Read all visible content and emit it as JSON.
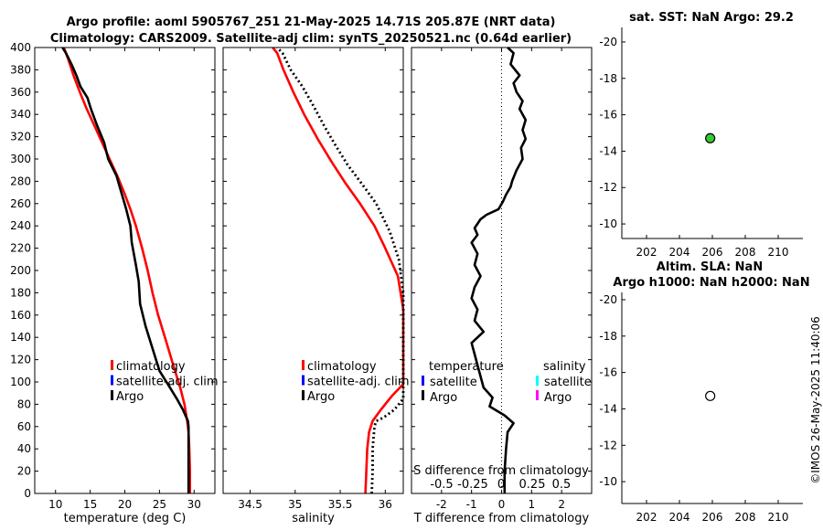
{
  "header": {
    "title_line1": "Argo profile: aoml 5905767_251 21-May-2025 14.71S 205.87E (NRT data)",
    "title_line2": "Climatology: CARS2009. Satellite-adj clim: synTS_20250521.nc (0.64d earlier)"
  },
  "stamp": "©IMOS 26-May-2025 11:40:06",
  "colors": {
    "climatology": "#ff0000",
    "satellite": "#0000ff",
    "argo": "#000000",
    "sal_satellite": "#00ffff",
    "sal_argo": "#ff00ff",
    "marker_fill": "#33cc33"
  },
  "chart_data": [
    {
      "id": "temperature",
      "type": "line",
      "xlabel": "temperature (deg C)",
      "ylabel": "",
      "xlim": [
        7,
        33
      ],
      "ylim": [
        400,
        0
      ],
      "xticks": [
        10,
        15,
        20,
        25,
        30
      ],
      "yticks": [
        0,
        20,
        40,
        60,
        80,
        100,
        120,
        140,
        160,
        180,
        200,
        220,
        240,
        260,
        280,
        300,
        320,
        340,
        360,
        380,
        400
      ],
      "legend": [
        "climatology",
        "satellite-adj. clim",
        "Argo"
      ],
      "series": [
        {
          "name": "climatology",
          "color": "#ff0000",
          "x": [
            29.4,
            29.4,
            29.3,
            29.2,
            29.0,
            28.6,
            28.0,
            27.0,
            25.8,
            24.8,
            24.0,
            23.3,
            22.5,
            21.6,
            20.8,
            19.9,
            18.9,
            17.8,
            16.7,
            15.6,
            14.5,
            13.5,
            12.6,
            11.8,
            11.2
          ],
          "y": [
            0,
            20,
            40,
            55,
            65,
            80,
            95,
            115,
            140,
            160,
            180,
            200,
            220,
            240,
            255,
            270,
            285,
            300,
            315,
            330,
            345,
            360,
            375,
            390,
            400
          ]
        },
        {
          "name": "Argo",
          "color": "#000000",
          "x": [
            29.2,
            29.2,
            29.2,
            29.2,
            29.1,
            28.4,
            27.5,
            26.5,
            25.0,
            24.0,
            23.0,
            22.2,
            22.0,
            21.6,
            21.0,
            20.8,
            20.2,
            19.5,
            18.8,
            17.6,
            17.0,
            16.0,
            15.1,
            14.6,
            13.6,
            13.0,
            12.3,
            11.5,
            11.0
          ],
          "y": [
            0,
            20,
            40,
            60,
            65,
            75,
            85,
            95,
            110,
            130,
            150,
            170,
            190,
            205,
            225,
            240,
            255,
            270,
            285,
            300,
            315,
            330,
            345,
            355,
            365,
            375,
            385,
            395,
            400
          ]
        }
      ]
    },
    {
      "id": "salinity",
      "type": "line",
      "xlabel": "salinity",
      "ylabel": "",
      "xlim": [
        34.2,
        36.2
      ],
      "ylim": [
        400,
        0
      ],
      "xticks": [
        34.5,
        35,
        35.5,
        36
      ],
      "legend": [
        "climatology",
        "satellite-adj. clim",
        "Argo"
      ],
      "series": [
        {
          "name": "climatology",
          "color": "#ff0000",
          "x": [
            35.78,
            35.79,
            35.8,
            35.82,
            35.86,
            35.95,
            36.08,
            36.2,
            36.2,
            36.2,
            36.14,
            36.0,
            35.88,
            35.72,
            35.56,
            35.4,
            35.25,
            35.1,
            34.98,
            34.87,
            34.8,
            34.75
          ],
          "y": [
            0,
            20,
            40,
            55,
            65,
            75,
            88,
            98,
            105,
            165,
            195,
            220,
            240,
            260,
            278,
            298,
            318,
            340,
            360,
            380,
            395,
            400
          ]
        },
        {
          "name": "Argo",
          "color": "#000000",
          "dash": true,
          "x": [
            35.85,
            35.86,
            35.86,
            35.88,
            35.9,
            35.98,
            36.1,
            36.2,
            36.2,
            36.2,
            36.15,
            36.05,
            35.9,
            35.72,
            35.58,
            35.45,
            35.32,
            35.2,
            35.08,
            34.95,
            34.86,
            34.8
          ],
          "y": [
            0,
            20,
            40,
            60,
            65,
            68,
            75,
            85,
            90,
            180,
            210,
            235,
            260,
            280,
            295,
            312,
            330,
            348,
            365,
            380,
            395,
            400
          ]
        }
      ]
    },
    {
      "id": "difference",
      "type": "line",
      "xlabel": "T difference from climatology",
      "xlabel2": "S difference from climatology",
      "xlim": [
        -3,
        3
      ],
      "ylim": [
        400,
        0
      ],
      "xticks": [
        -2,
        -1,
        0,
        1,
        2
      ],
      "xticks2_labels": [
        "-0.5",
        "-0.25",
        "0",
        "0.25",
        "0.5"
      ],
      "legend_left": [
        "temperature",
        "satellite",
        "Argo"
      ],
      "legend_right": [
        "salinity",
        "satellite",
        "Argo"
      ],
      "series": [
        {
          "name": "Argo",
          "color": "#000000",
          "x": [
            0.1,
            0.1,
            0.15,
            0.2,
            0.4,
            0.1,
            -0.4,
            -0.3,
            -0.6,
            -0.7,
            -0.8,
            -0.9,
            -1.0,
            -0.6,
            -0.9,
            -0.8,
            -1.0,
            -0.9,
            -0.7,
            -0.9,
            -0.8,
            -1.0,
            -0.8,
            -0.9,
            -0.7,
            -0.5,
            -0.1,
            0.05,
            0.15,
            0.3,
            0.35,
            0.5,
            0.7,
            0.65,
            0.8,
            0.7,
            0.8,
            0.6,
            0.7,
            0.5,
            0.4,
            0.6,
            0.3,
            0.4,
            0.2
          ],
          "y": [
            0,
            20,
            40,
            55,
            63,
            70,
            78,
            86,
            95,
            105,
            115,
            125,
            135,
            145,
            155,
            165,
            175,
            185,
            195,
            205,
            215,
            225,
            232,
            238,
            246,
            250,
            255,
            262,
            268,
            275,
            280,
            290,
            300,
            310,
            318,
            326,
            335,
            345,
            352,
            360,
            368,
            375,
            385,
            395,
            400
          ]
        }
      ]
    },
    {
      "id": "sst_map",
      "type": "scatter",
      "title": "sat. SST: NaN Argo: 29.2",
      "xlim": [
        200.5,
        211.5
      ],
      "ylim": [
        -20.8,
        -9.2
      ],
      "xticks": [
        202,
        204,
        206,
        208,
        210
      ],
      "yticks": [
        -10,
        -12,
        -14,
        -16,
        -18,
        -20
      ],
      "points": [
        {
          "x": 205.87,
          "y": -14.71,
          "fill": "#33cc33"
        }
      ]
    },
    {
      "id": "sla_map",
      "type": "scatter",
      "title": "Altim. SLA: NaN",
      "title2": "Argo h1000: NaN h2000: NaN",
      "xlim": [
        200.5,
        211.5
      ],
      "ylim": [
        -20.4,
        -8.8
      ],
      "xticks": [
        202,
        204,
        206,
        208,
        210
      ],
      "yticks": [
        -10,
        -12,
        -14,
        -16,
        -18,
        -20
      ],
      "points": [
        {
          "x": 205.87,
          "y": -14.71,
          "fill": "#ffffff"
        }
      ]
    }
  ]
}
